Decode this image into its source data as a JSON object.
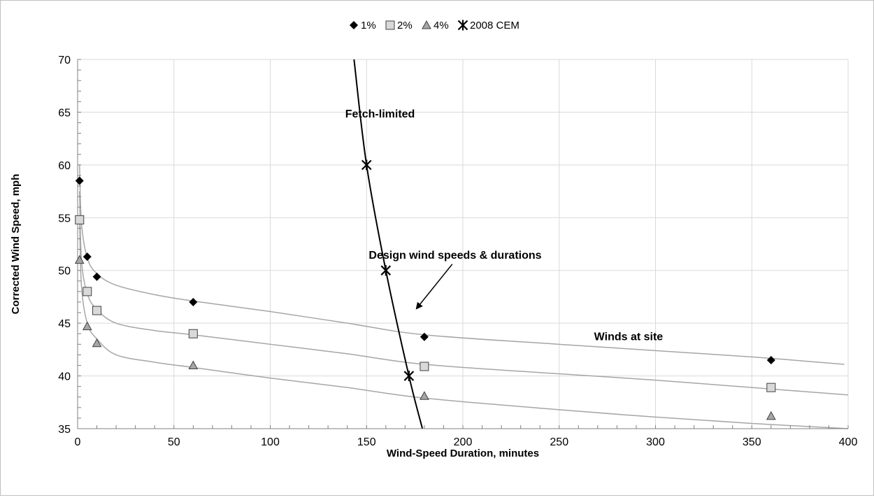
{
  "chart_data": {
    "type": "scatter",
    "xlabel": "Wind-Speed Duration, minutes",
    "ylabel": "Corrected Wind Speed, mph",
    "xlim": [
      0,
      400
    ],
    "ylim": [
      35,
      70
    ],
    "xticks": [
      0,
      50,
      100,
      150,
      200,
      250,
      300,
      350,
      400
    ],
    "yticks": [
      35,
      40,
      45,
      50,
      55,
      60,
      65,
      70
    ],
    "grid": "both",
    "legend_position": "top",
    "series": [
      {
        "name": "1%",
        "marker": "diamond",
        "color": "#000000",
        "points": [
          [
            1,
            58.5
          ],
          [
            5,
            51.3
          ],
          [
            10,
            49.4
          ],
          [
            60,
            47.0
          ],
          [
            180,
            43.7
          ],
          [
            360,
            41.5
          ]
        ]
      },
      {
        "name": "2%",
        "marker": "square",
        "color": "#d9d9d9",
        "points": [
          [
            1,
            54.8
          ],
          [
            5,
            48.0
          ],
          [
            10,
            46.2
          ],
          [
            60,
            44.0
          ],
          [
            180,
            40.9
          ],
          [
            360,
            38.9
          ]
        ]
      },
      {
        "name": "4%",
        "marker": "triangle",
        "color": "#a6a6a6",
        "points": [
          [
            1,
            51.0
          ],
          [
            5,
            44.7
          ],
          [
            10,
            43.1
          ],
          [
            60,
            41.0
          ],
          [
            180,
            38.1
          ],
          [
            360,
            36.2
          ]
        ]
      },
      {
        "name": "2008 CEM",
        "marker": "star",
        "color": "#000000",
        "points": [
          [
            150,
            60
          ],
          [
            160,
            50
          ],
          [
            172,
            40
          ]
        ]
      }
    ],
    "fit_curves": [
      {
        "of": "1%",
        "color": "#a6a6a6",
        "points": [
          [
            1,
            60
          ],
          [
            2,
            54.5
          ],
          [
            5,
            51.2
          ],
          [
            10,
            49.7
          ],
          [
            20,
            48.6
          ],
          [
            40,
            47.7
          ],
          [
            60,
            47.1
          ],
          [
            100,
            46.1
          ],
          [
            140,
            45.0
          ],
          [
            180,
            43.9
          ],
          [
            250,
            43.0
          ],
          [
            300,
            42.4
          ],
          [
            350,
            41.8
          ],
          [
            398,
            41.1
          ]
        ]
      },
      {
        "of": "2%",
        "color": "#a6a6a6",
        "points": [
          [
            1,
            57.5
          ],
          [
            2,
            51.0
          ],
          [
            5,
            47.8
          ],
          [
            10,
            46.3
          ],
          [
            20,
            45.0
          ],
          [
            40,
            44.3
          ],
          [
            60,
            43.9
          ],
          [
            100,
            43.0
          ],
          [
            140,
            42.1
          ],
          [
            180,
            41.1
          ],
          [
            250,
            40.2
          ],
          [
            300,
            39.6
          ],
          [
            350,
            38.9
          ],
          [
            400,
            38.2
          ]
        ]
      },
      {
        "of": "4%",
        "color": "#a6a6a6",
        "points": [
          [
            1,
            55.0
          ],
          [
            2,
            48.5
          ],
          [
            5,
            45.0
          ],
          [
            10,
            43.5
          ],
          [
            20,
            42.0
          ],
          [
            40,
            41.3
          ],
          [
            60,
            40.8
          ],
          [
            100,
            39.8
          ],
          [
            140,
            38.9
          ],
          [
            180,
            37.9
          ],
          [
            250,
            36.8
          ],
          [
            300,
            36.1
          ],
          [
            350,
            35.5
          ],
          [
            400,
            35.0
          ]
        ]
      },
      {
        "of": "2008 CEM",
        "color": "#000000",
        "points": [
          [
            143.5,
            70
          ],
          [
            150,
            60
          ],
          [
            160,
            50
          ],
          [
            172,
            40
          ],
          [
            179,
            35
          ]
        ]
      }
    ],
    "annotations": [
      {
        "text": "Fetch-limited",
        "x": 157,
        "y": 64.5
      },
      {
        "text": "Design wind speeds & durations",
        "x": 196,
        "y": 51.1
      },
      {
        "text": "Winds at site",
        "x": 286,
        "y": 43.4
      }
    ],
    "arrow": {
      "from": [
        194.5,
        50.6
      ],
      "to": [
        176,
        46.4
      ]
    }
  }
}
